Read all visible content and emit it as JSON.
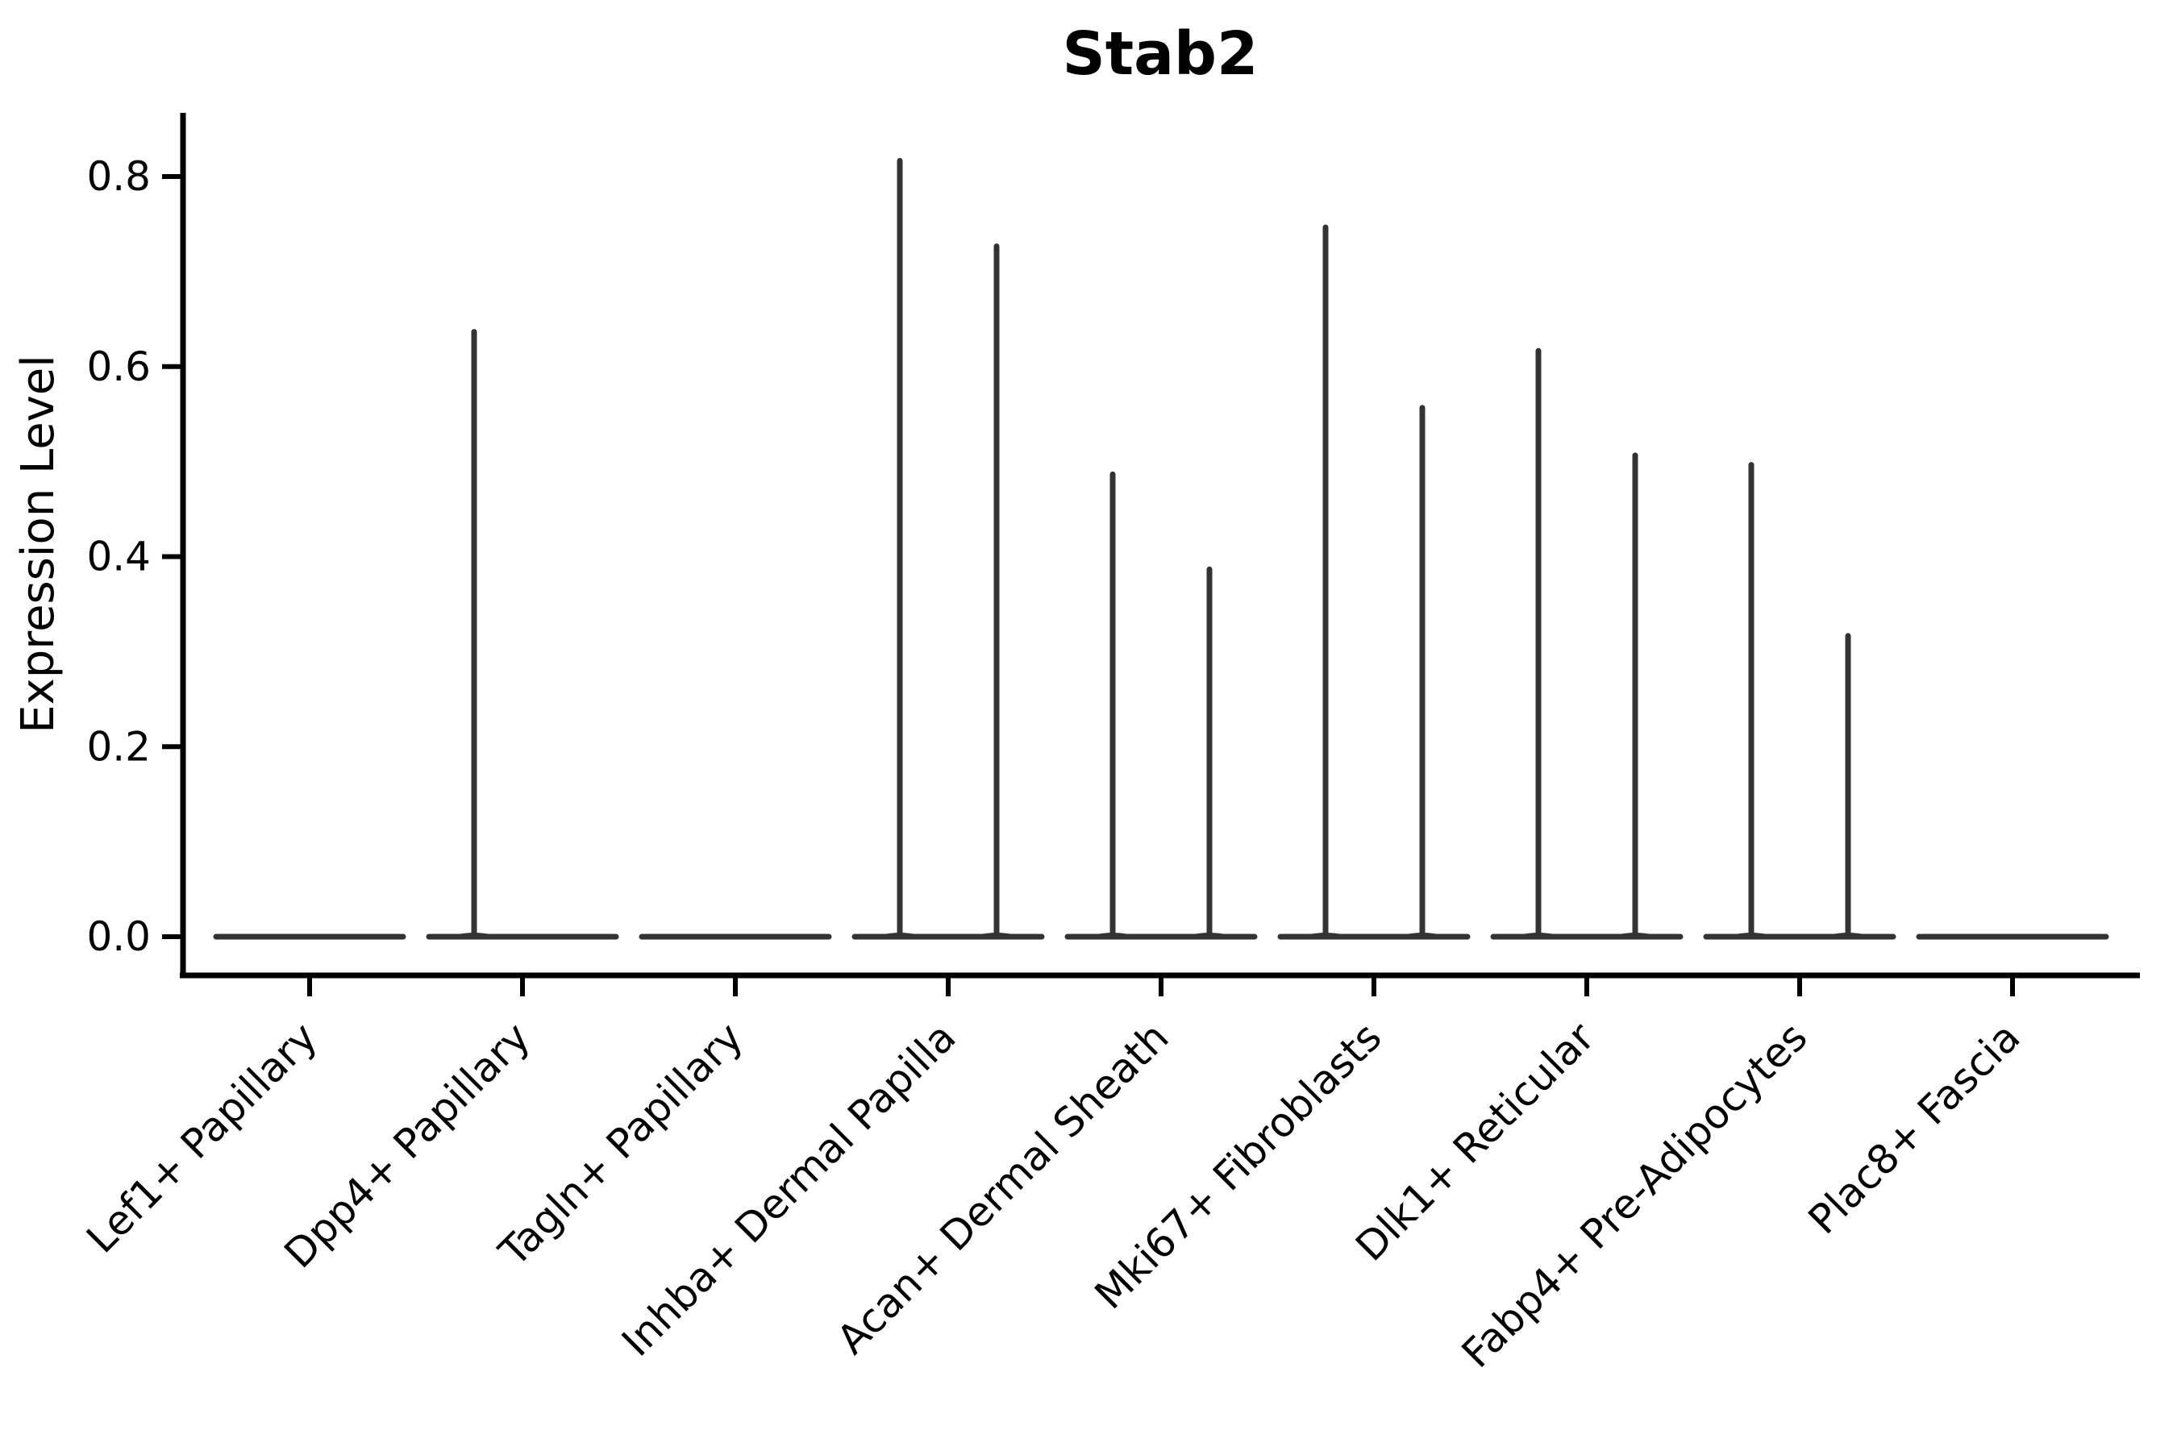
{
  "title": "Stab2",
  "ylabel": "Expression Level",
  "chart_data": {
    "type": "violin",
    "title": "Stab2",
    "xlabel": "",
    "ylabel": "Expression Level",
    "categories": [
      "Lef1+ Papillary",
      "Dpp4+ Papillary",
      "Tagln+ Papillary",
      "Inhba+ Dermal Papilla",
      "Acan+ Dermal Sheath",
      "Mki67+ Fibroblasts",
      "Dlk1+ Reticular",
      "Fabp4+ Pre-Adipocytes",
      "Plac8+ Fascia"
    ],
    "series": [
      {
        "name": "violin-left",
        "max_values": [
          0,
          0.64,
          0,
          0.82,
          0.49,
          0.75,
          0.62,
          0.5,
          0
        ]
      },
      {
        "name": "violin-right",
        "max_values": [
          0,
          0,
          0,
          0.73,
          0.39,
          0.56,
          0.51,
          0.32,
          0
        ]
      }
    ],
    "baseline_value": 0.0,
    "yticks": [
      0.0,
      0.2,
      0.4,
      0.6,
      0.8
    ],
    "ylim": [
      0.0,
      0.87
    ],
    "grid": false,
    "legend": "none"
  },
  "colors": {
    "violin": "#333333",
    "axis": "#000000",
    "text": "#000000",
    "background": "#ffffff"
  }
}
